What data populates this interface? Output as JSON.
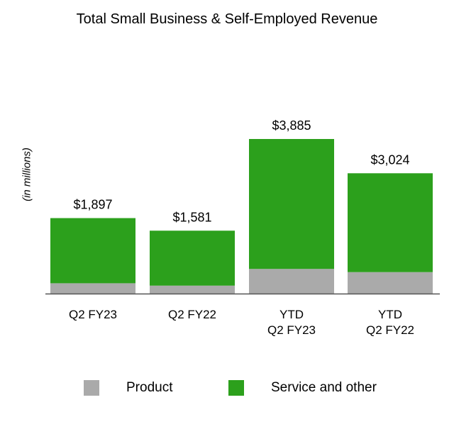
{
  "chart_data": {
    "type": "bar",
    "stacked": true,
    "title": "Total Small Business & Self-Employed Revenue",
    "ylabel": "(in millions)",
    "xlabel": "",
    "categories": [
      [
        "Q2 FY23"
      ],
      [
        "Q2 FY22"
      ],
      [
        "YTD",
        "Q2 FY23"
      ],
      [
        "YTD",
        "Q2 FY22"
      ]
    ],
    "series": [
      {
        "name": "Product",
        "color": "#aaaaaa",
        "values": [
          260,
          200,
          620,
          540
        ]
      },
      {
        "name": "Service and other",
        "color": "#2ca01c",
        "values": [
          1637,
          1381,
          3265,
          2484
        ]
      }
    ],
    "totals": [
      1897,
      1581,
      3885,
      3024
    ],
    "total_labels": [
      "$1,897",
      "$1,581",
      "$3,885",
      "$3,024"
    ],
    "ylim": [
      0,
      4000
    ],
    "grid": false,
    "legend_position": "bottom"
  }
}
